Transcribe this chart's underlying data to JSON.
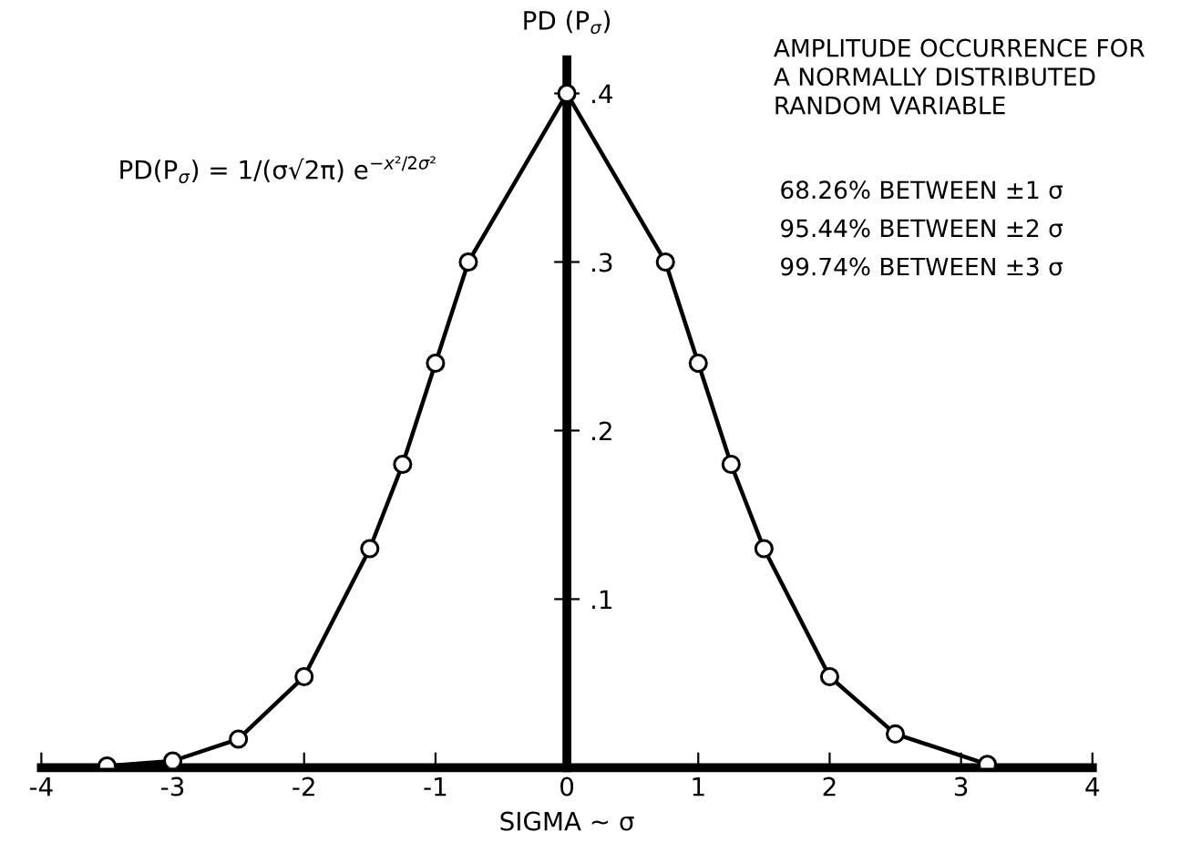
{
  "chart_data": {
    "type": "line",
    "title": "AMPLITUDE OCCURRENCE FOR\nA NORMALLY DISTRIBUTED\nRANDOM VARIABLE",
    "xlabel": "SIGMA ~ σ",
    "ylabel": "PD (P$_{σ}$)",
    "annotations": [
      "PD(P$_{σ}$) = 1/(σ√2π) e$^{−x²/2σ²}$",
      "68.26% BETWEEN ±1 σ",
      "95.44% BETWEEN ±2 σ",
      "99.74% BETWEEN ±3 σ"
    ],
    "x": [
      -3.5,
      -3,
      -2.5,
      -2,
      -1.5,
      -1.25,
      -1,
      -0.75,
      0,
      0.75,
      1,
      1.25,
      1.5,
      2,
      2.5,
      3.2
    ],
    "series": [
      {
        "color": "#000000",
        "values": [
          0.001,
          0.004,
          0.017,
          0.054,
          0.13,
          0.18,
          0.24,
          0.3,
          0.4,
          0.3,
          0.24,
          0.18,
          0.13,
          0.054,
          0.02,
          0.002
        ]
      }
    ],
    "xlim": [
      -4,
      4
    ],
    "ylim": [
      0,
      0.42
    ],
    "xticks": [
      -4,
      -3,
      -2,
      -1,
      0,
      1,
      2,
      3,
      4
    ],
    "yticks": [
      {
        "value": 0.1,
        "label": ".1"
      },
      {
        "value": 0.2,
        "label": ".2"
      },
      {
        "value": 0.3,
        "label": ".3"
      },
      {
        "value": 0.4,
        "label": ".4"
      }
    ],
    "marker": "circle",
    "line_style": "solid",
    "grid": false,
    "legend": false
  }
}
